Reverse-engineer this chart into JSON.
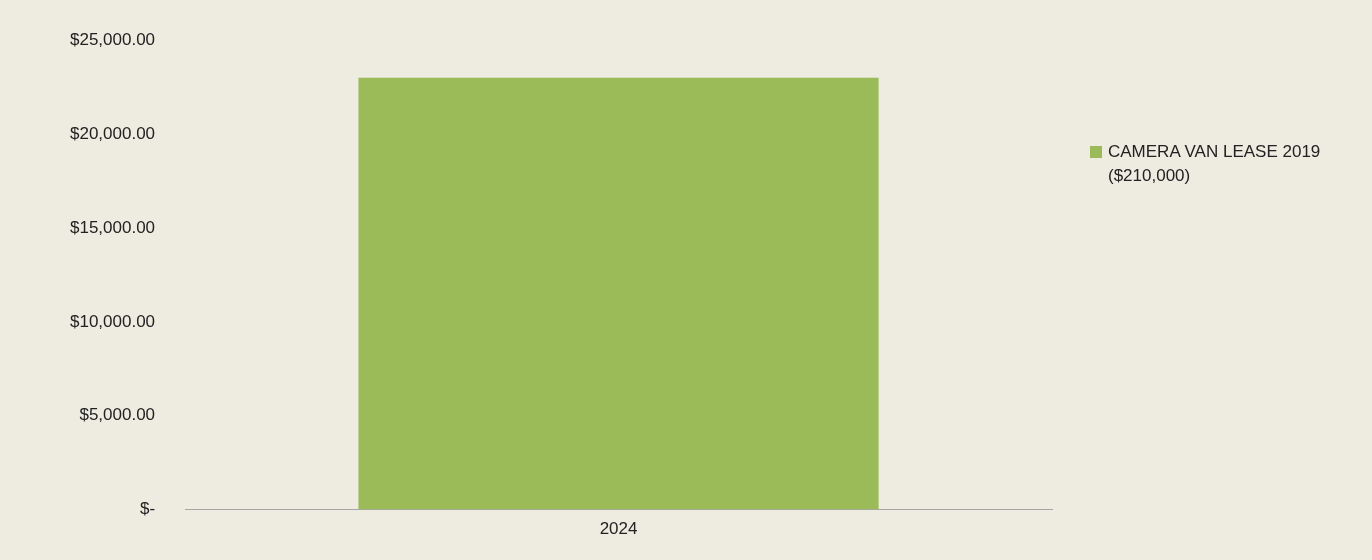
{
  "chart_data": {
    "type": "bar",
    "categories": [
      "2024"
    ],
    "series": [
      {
        "name": "CAMERA VAN LEASE 2019 ($210,000)",
        "color": "#9bbb59",
        "values": [
          23000
        ]
      }
    ],
    "ylim": [
      0,
      25000
    ],
    "yticks": [
      {
        "value": 0,
        "label": "$-"
      },
      {
        "value": 5000,
        "label": "$5,000.00"
      },
      {
        "value": 10000,
        "label": "$10,000.00"
      },
      {
        "value": 15000,
        "label": "$15,000.00"
      },
      {
        "value": 20000,
        "label": "$20,000.00"
      },
      {
        "value": 25000,
        "label": "$25,000.00"
      }
    ],
    "grid": false,
    "legend": "top right"
  }
}
